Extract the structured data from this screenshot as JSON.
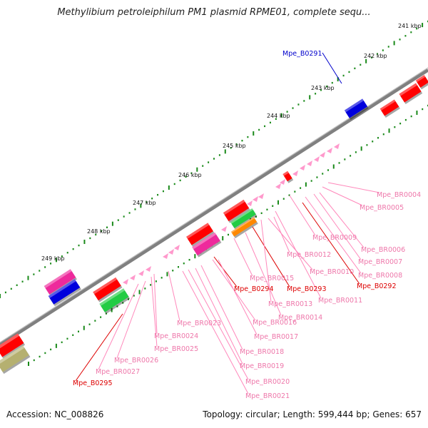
{
  "title": "Methylibium petroleiphilum PM1 plasmid RPME01, complete sequ...",
  "footer": {
    "accession": "Accession: NC_008826",
    "summary": "Topology: circular; Length: 599,444 bp; Genes: 657"
  },
  "kbp_labels": [
    "241 kbp",
    "242 kbp",
    "243 kbp",
    "244 kbp",
    "245 kbp",
    "246 kbp",
    "247 kbp",
    "248 kbp",
    "249 kbp"
  ],
  "colors": {
    "backbone": "#808080",
    "tick": "#1a8a1a",
    "red": "#ff0000",
    "magenta": "#ee2a9c",
    "blue": "#0000dd",
    "green": "#22cc44",
    "orange": "#ff8800",
    "olive": "#b5b070",
    "pink": "#ff99cc",
    "label_red": "#dd0000",
    "label_blue": "#0000cc",
    "label_pink": "#ee77aa",
    "leader_red": "#dd0000",
    "leader_pink": "#ff88bb",
    "leader_blue": "#0000cc"
  },
  "gene_labels": [
    {
      "text": "Mpe_B0291",
      "kind": "blue"
    },
    {
      "text": "Mpe_BR0004",
      "kind": "pink"
    },
    {
      "text": "Mpe_BR0005",
      "kind": "pink"
    },
    {
      "text": "Mpe_BR0009",
      "kind": "pink"
    },
    {
      "text": "Mpe_BR0006",
      "kind": "pink"
    },
    {
      "text": "Mpe_BR0012",
      "kind": "pink"
    },
    {
      "text": "Mpe_BR0007",
      "kind": "pink"
    },
    {
      "text": "Mpe_BR0010",
      "kind": "pink"
    },
    {
      "text": "Mpe_BR0008",
      "kind": "pink"
    },
    {
      "text": "Mpe_BR0015",
      "kind": "pink"
    },
    {
      "text": "Mpe_B0294",
      "kind": "red"
    },
    {
      "text": "Mpe_B0293",
      "kind": "red"
    },
    {
      "text": "Mpe_B0292",
      "kind": "red"
    },
    {
      "text": "Mpe_BR0011",
      "kind": "pink"
    },
    {
      "text": "Mpe_BR0013",
      "kind": "pink"
    },
    {
      "text": "Mpe_BR0014",
      "kind": "pink"
    },
    {
      "text": "Mpe_BR0016",
      "kind": "pink"
    },
    {
      "text": "Mpe_BR0023",
      "kind": "pink"
    },
    {
      "text": "Mpe_BR0017",
      "kind": "pink"
    },
    {
      "text": "Mpe_BR0024",
      "kind": "pink"
    },
    {
      "text": "Mpe_BR0018",
      "kind": "pink"
    },
    {
      "text": "Mpe_BR0025",
      "kind": "pink"
    },
    {
      "text": "Mpe_BR0026",
      "kind": "pink"
    },
    {
      "text": "Mpe_BR0019",
      "kind": "pink"
    },
    {
      "text": "Mpe_BR0027",
      "kind": "pink"
    },
    {
      "text": "Mpe_BR0020",
      "kind": "pink"
    },
    {
      "text": "Mpe_B0295",
      "kind": "red"
    },
    {
      "text": "Mpe_BR0021",
      "kind": "pink"
    }
  ],
  "gene_blocks": [
    {
      "kind": "red"
    },
    {
      "kind": "red"
    },
    {
      "kind": "red"
    },
    {
      "kind": "blue"
    },
    {
      "kind": "red"
    },
    {
      "kind": "red"
    },
    {
      "kind": "green"
    },
    {
      "kind": "orange"
    },
    {
      "kind": "red"
    },
    {
      "kind": "magenta"
    },
    {
      "kind": "magenta"
    },
    {
      "kind": "blue"
    },
    {
      "kind": "red"
    },
    {
      "kind": "green"
    },
    {
      "kind": "red"
    },
    {
      "kind": "olive"
    }
  ]
}
